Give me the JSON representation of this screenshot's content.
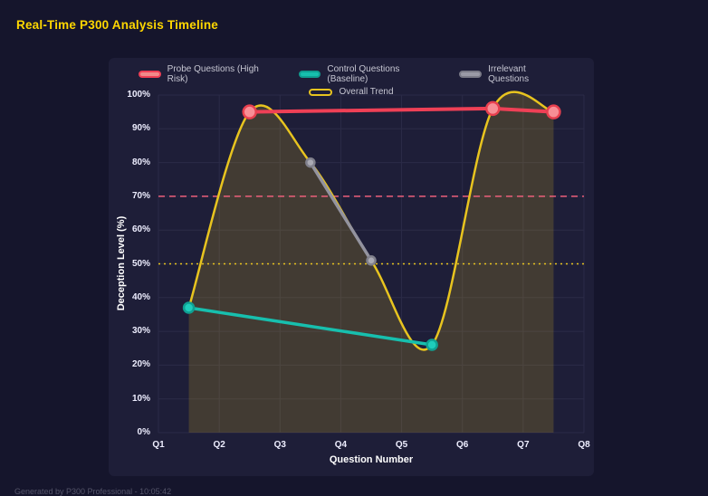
{
  "page": {
    "title": "Real-Time P300 Analysis Timeline",
    "footer": "Generated by P300 Professional - 10:05:42",
    "colors": {
      "background": "#15152c",
      "panel": "#1e1e38",
      "grid": "#2b2b47",
      "tick_text": "#eeeeff",
      "title": "#ffd700",
      "footer_text": "#55556a"
    }
  },
  "chart_data": {
    "type": "line",
    "title": "Real-Time P300 Analysis Timeline",
    "xlabel": "Question Number",
    "ylabel": "Deception Level (%)",
    "x_range": [
      1,
      8
    ],
    "y_range": [
      0,
      100
    ],
    "grid": true,
    "legend_position": "top-center",
    "x_ticks": [
      {
        "value": 1,
        "label": "Q1"
      },
      {
        "value": 2,
        "label": "Q2"
      },
      {
        "value": 3,
        "label": "Q3"
      },
      {
        "value": 4,
        "label": "Q4"
      },
      {
        "value": 5,
        "label": "Q5"
      },
      {
        "value": 6,
        "label": "Q6"
      },
      {
        "value": 7,
        "label": "Q7"
      },
      {
        "value": 8,
        "label": "Q8"
      }
    ],
    "y_ticks": [
      {
        "value": 0,
        "label": "0%"
      },
      {
        "value": 10,
        "label": "10%"
      },
      {
        "value": 20,
        "label": "20%"
      },
      {
        "value": 30,
        "label": "30%"
      },
      {
        "value": 40,
        "label": "40%"
      },
      {
        "value": 50,
        "label": "50%"
      },
      {
        "value": 60,
        "label": "60%"
      },
      {
        "value": 70,
        "label": "70%"
      },
      {
        "value": 80,
        "label": "80%"
      },
      {
        "value": 90,
        "label": "90%"
      },
      {
        "value": 100,
        "label": "100%"
      }
    ],
    "series": [
      {
        "name": "Probe Questions (High Risk)",
        "color": "#ef4056",
        "line_width": 4,
        "marker": {
          "fill": "#f78f96",
          "stroke": "#e8404f",
          "radius": 7
        },
        "legend_swatch": {
          "fill": "#f08a8a",
          "border": "#ef4056"
        },
        "points": [
          [
            2.5,
            95
          ],
          [
            6.5,
            96
          ],
          [
            7.5,
            95
          ]
        ]
      },
      {
        "name": "Control Questions (Baseline)",
        "color": "#17bfae",
        "line_width": 3.5,
        "marker": {
          "fill": "#1ecdbb",
          "stroke": "#0fa092",
          "radius": 5.5
        },
        "legend_swatch": {
          "fill": "#17bfae",
          "border": "#0f9e91"
        },
        "points": [
          [
            1.5,
            37
          ],
          [
            5.5,
            26
          ]
        ]
      },
      {
        "name": "Irrelevant Questions",
        "color": "#93939f",
        "line_width": 3.5,
        "marker": {
          "fill": "#aaaab4",
          "stroke": "#80808c",
          "radius": 4.5
        },
        "legend_swatch": {
          "fill": "#9a9aa6",
          "border": "#7b7b88"
        },
        "points": [
          [
            3.5,
            80
          ],
          [
            4.5,
            51
          ]
        ]
      },
      {
        "name": "Overall Trend",
        "color": "#e8c41f",
        "line_width": 2.5,
        "smooth": true,
        "area_fill": "rgba(232,196,31,0.18)",
        "legend_swatch": {
          "fill": "rgba(0,0,0,0)",
          "border": "#e8c41f"
        },
        "points": [
          [
            1.5,
            37
          ],
          [
            2.5,
            95
          ],
          [
            3.5,
            80
          ],
          [
            4.5,
            51
          ],
          [
            5.5,
            26
          ],
          [
            6.5,
            96
          ],
          [
            7.5,
            95
          ]
        ]
      }
    ],
    "thresholds": [
      {
        "value": 70,
        "color": "#ec5f7a",
        "dash": "7 5"
      },
      {
        "value": 50,
        "color": "#e8c41f",
        "dash": "2 4"
      }
    ]
  }
}
